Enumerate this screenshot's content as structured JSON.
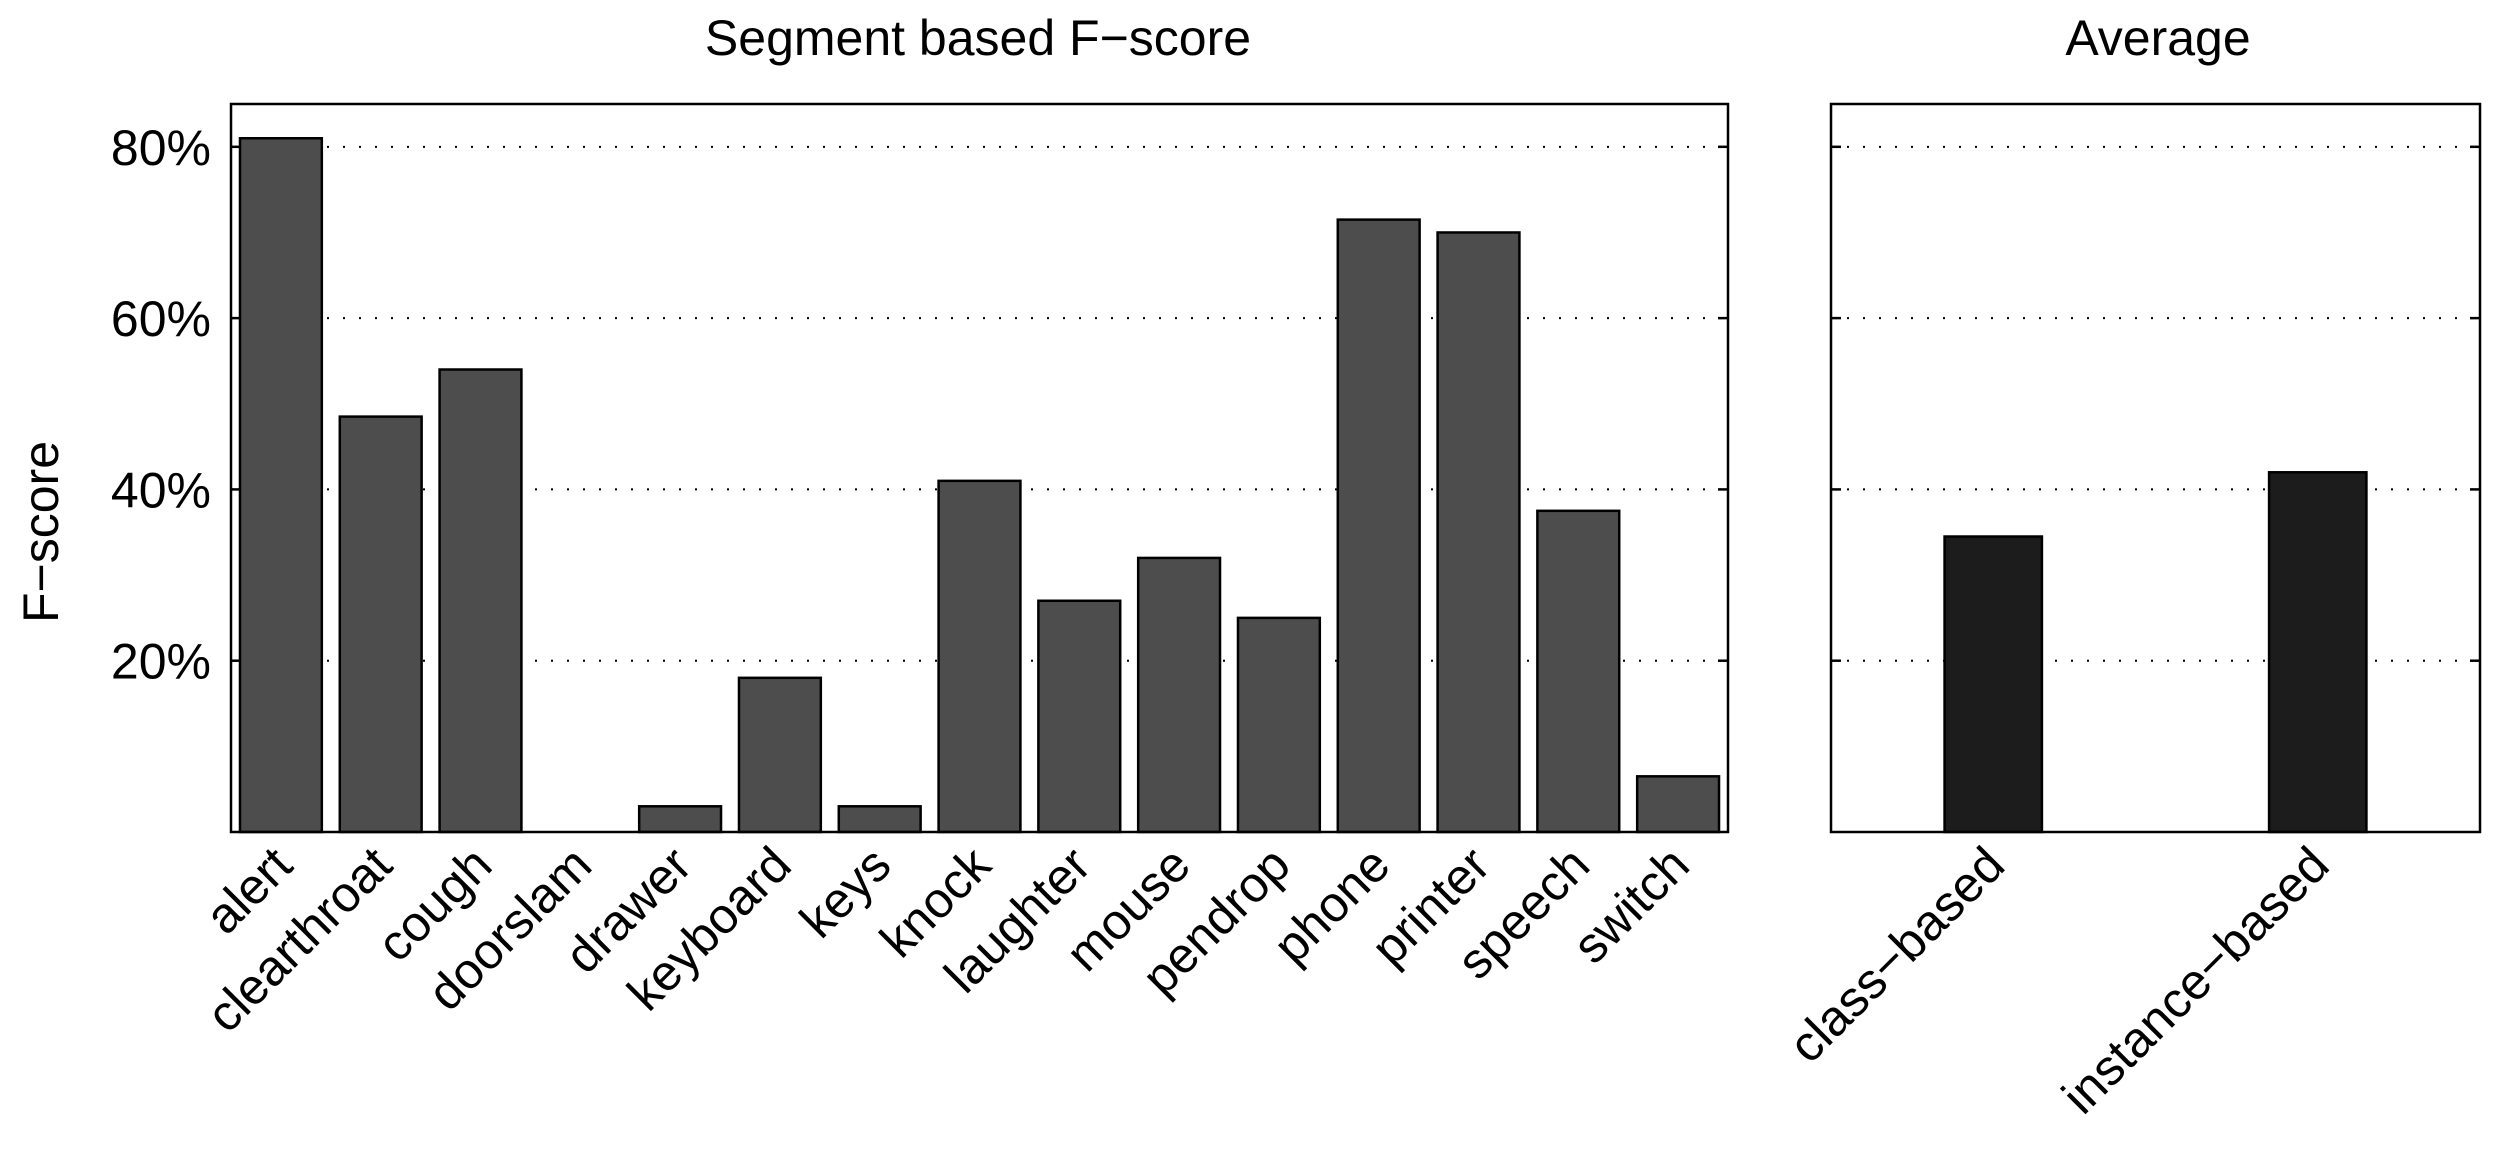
{
  "chart_data": [
    {
      "type": "bar",
      "title": "Segment based F−score",
      "ylabel": "F−score",
      "ylim": [
        0,
        85
      ],
      "yticks": [
        20,
        40,
        60,
        80
      ],
      "ytick_labels": [
        "20%",
        "40%",
        "60%",
        "80%"
      ],
      "grid": "horizontal-dotted",
      "bar_color": "#4d4d4d",
      "categories": [
        "alert",
        "clearthroat",
        "cough",
        "doorslam",
        "drawer",
        "keyboard",
        "keys",
        "knock",
        "laughter",
        "mouse",
        "pendrop",
        "phone",
        "printer",
        "speech",
        "switch"
      ],
      "values": [
        81,
        48.5,
        54,
        0,
        3,
        18,
        3,
        41,
        27,
        32,
        25,
        71.5,
        70,
        37.5,
        6.5
      ]
    },
    {
      "type": "bar",
      "title": "Average",
      "ylim": [
        0,
        85
      ],
      "yticks": [
        20,
        40,
        60,
        80
      ],
      "grid": "horizontal-dotted",
      "bar_color": "#1c1c1c",
      "categories": [
        "class−based",
        "instance−based"
      ],
      "values": [
        34.5,
        42
      ]
    }
  ]
}
